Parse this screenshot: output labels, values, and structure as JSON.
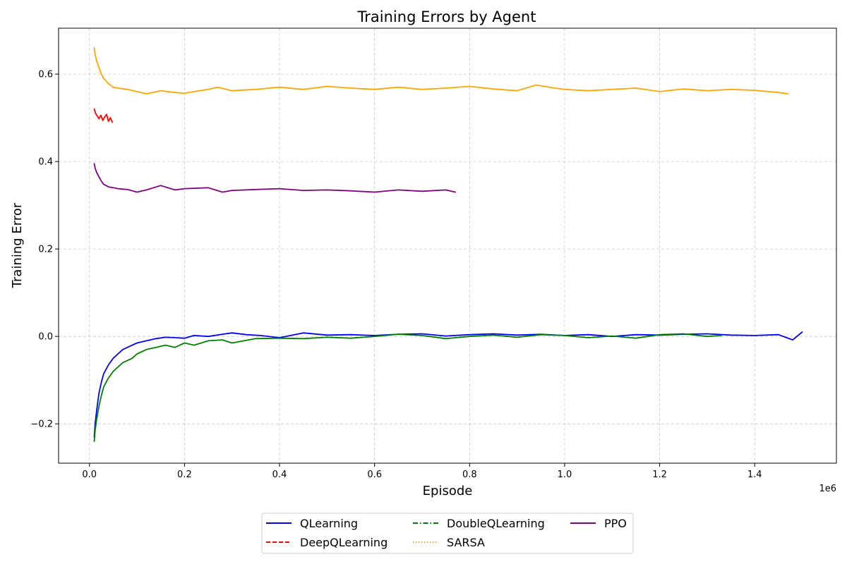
{
  "chart_data": {
    "type": "line",
    "title": "Training Errors by Agent",
    "xlabel": "Episode",
    "ylabel": "Training Error",
    "x_offset_label": "1e6",
    "xlim": [
      -0.065,
      1.572
    ],
    "ylim": [
      -0.29,
      0.705
    ],
    "x_ticks": [
      0.0,
      0.2,
      0.4,
      0.6,
      0.8,
      1.0,
      1.2,
      1.4
    ],
    "x_tick_labels": [
      "0.0",
      "0.2",
      "0.4",
      "0.6",
      "0.8",
      "1.0",
      "1.2",
      "1.4"
    ],
    "y_ticks": [
      -0.2,
      0.0,
      0.2,
      0.4,
      0.6
    ],
    "y_tick_labels": [
      "−0.2",
      "0.0",
      "0.2",
      "0.4",
      "0.6"
    ],
    "grid": true,
    "legend_placement": "bottom-center",
    "series": [
      {
        "name": "QLearning",
        "color": "#0000ff",
        "dash": "solid",
        "x": [
          0.01,
          0.012,
          0.015,
          0.02,
          0.025,
          0.03,
          0.04,
          0.05,
          0.06,
          0.07,
          0.08,
          0.09,
          0.1,
          0.12,
          0.14,
          0.16,
          0.18,
          0.2,
          0.22,
          0.25,
          0.28,
          0.3,
          0.33,
          0.36,
          0.4,
          0.45,
          0.5,
          0.55,
          0.6,
          0.65,
          0.7,
          0.75,
          0.8,
          0.85,
          0.9,
          0.95,
          1.0,
          1.05,
          1.1,
          1.15,
          1.2,
          1.25,
          1.3,
          1.35,
          1.4,
          1.45,
          1.48,
          1.5
        ],
        "y": [
          -0.23,
          -0.2,
          -0.17,
          -0.13,
          -0.105,
          -0.085,
          -0.065,
          -0.05,
          -0.04,
          -0.03,
          -0.025,
          -0.02,
          -0.015,
          -0.01,
          -0.005,
          -0.002,
          -0.003,
          -0.004,
          0.002,
          0.0,
          0.005,
          0.008,
          0.004,
          0.002,
          -0.003,
          0.008,
          0.003,
          0.004,
          0.002,
          0.005,
          0.006,
          0.001,
          0.004,
          0.006,
          0.003,
          0.005,
          0.002,
          0.004,
          0.0,
          0.004,
          0.003,
          0.005,
          0.006,
          0.003,
          0.002,
          0.004,
          -0.008,
          0.01
        ]
      },
      {
        "name": "DeepQLearning",
        "color": "#ff0000",
        "dash": "dashed",
        "x": [
          0.01,
          0.013,
          0.016,
          0.02,
          0.024,
          0.028,
          0.032,
          0.036,
          0.04,
          0.044,
          0.048
        ],
        "y": [
          0.52,
          0.51,
          0.505,
          0.498,
          0.506,
          0.494,
          0.502,
          0.508,
          0.492,
          0.5,
          0.49
        ]
      },
      {
        "name": "DoubleQLearning",
        "color": "#008000",
        "dash": "dashdot",
        "x": [
          0.01,
          0.012,
          0.015,
          0.02,
          0.025,
          0.03,
          0.04,
          0.05,
          0.06,
          0.07,
          0.08,
          0.09,
          0.1,
          0.12,
          0.14,
          0.16,
          0.18,
          0.2,
          0.22,
          0.25,
          0.28,
          0.3,
          0.35,
          0.4,
          0.45,
          0.5,
          0.55,
          0.6,
          0.65,
          0.7,
          0.75,
          0.8,
          0.85,
          0.9,
          0.95,
          1.0,
          1.05,
          1.1,
          1.15,
          1.2,
          1.25,
          1.3,
          1.33
        ],
        "y": [
          -0.24,
          -0.215,
          -0.19,
          -0.16,
          -0.135,
          -0.115,
          -0.095,
          -0.08,
          -0.07,
          -0.06,
          -0.055,
          -0.05,
          -0.04,
          -0.03,
          -0.025,
          -0.02,
          -0.025,
          -0.015,
          -0.02,
          -0.01,
          -0.008,
          -0.015,
          -0.005,
          -0.004,
          -0.005,
          -0.002,
          -0.004,
          0.0,
          0.005,
          0.002,
          -0.005,
          0.0,
          0.003,
          -0.002,
          0.004,
          0.002,
          -0.003,
          0.001,
          -0.004,
          0.004,
          0.006,
          0.0,
          0.002
        ]
      },
      {
        "name": "SARSA",
        "color": "#ffa500",
        "dash": "dotted",
        "x": [
          0.01,
          0.012,
          0.015,
          0.02,
          0.025,
          0.03,
          0.04,
          0.05,
          0.06,
          0.08,
          0.1,
          0.12,
          0.15,
          0.18,
          0.2,
          0.22,
          0.25,
          0.27,
          0.3,
          0.35,
          0.4,
          0.45,
          0.5,
          0.55,
          0.6,
          0.65,
          0.7,
          0.75,
          0.8,
          0.85,
          0.9,
          0.94,
          0.98,
          1.0,
          1.05,
          1.1,
          1.15,
          1.2,
          1.25,
          1.3,
          1.35,
          1.4,
          1.45,
          1.47
        ],
        "y": [
          0.66,
          0.645,
          0.63,
          0.615,
          0.6,
          0.59,
          0.578,
          0.57,
          0.568,
          0.565,
          0.56,
          0.555,
          0.562,
          0.558,
          0.556,
          0.56,
          0.565,
          0.57,
          0.562,
          0.565,
          0.57,
          0.565,
          0.572,
          0.568,
          0.565,
          0.57,
          0.565,
          0.568,
          0.572,
          0.566,
          0.562,
          0.575,
          0.568,
          0.565,
          0.562,
          0.565,
          0.568,
          0.56,
          0.566,
          0.562,
          0.565,
          0.563,
          0.558,
          0.555
        ]
      },
      {
        "name": "PPO",
        "color": "#800080",
        "dash": "solid",
        "x": [
          0.01,
          0.012,
          0.015,
          0.02,
          0.025,
          0.03,
          0.04,
          0.05,
          0.06,
          0.08,
          0.1,
          0.12,
          0.15,
          0.18,
          0.2,
          0.25,
          0.28,
          0.3,
          0.35,
          0.4,
          0.45,
          0.5,
          0.55,
          0.6,
          0.65,
          0.7,
          0.75,
          0.77
        ],
        "y": [
          0.395,
          0.385,
          0.375,
          0.365,
          0.355,
          0.348,
          0.342,
          0.34,
          0.338,
          0.336,
          0.33,
          0.335,
          0.345,
          0.335,
          0.338,
          0.34,
          0.33,
          0.334,
          0.336,
          0.338,
          0.334,
          0.335,
          0.333,
          0.33,
          0.335,
          0.332,
          0.335,
          0.33
        ]
      }
    ]
  }
}
